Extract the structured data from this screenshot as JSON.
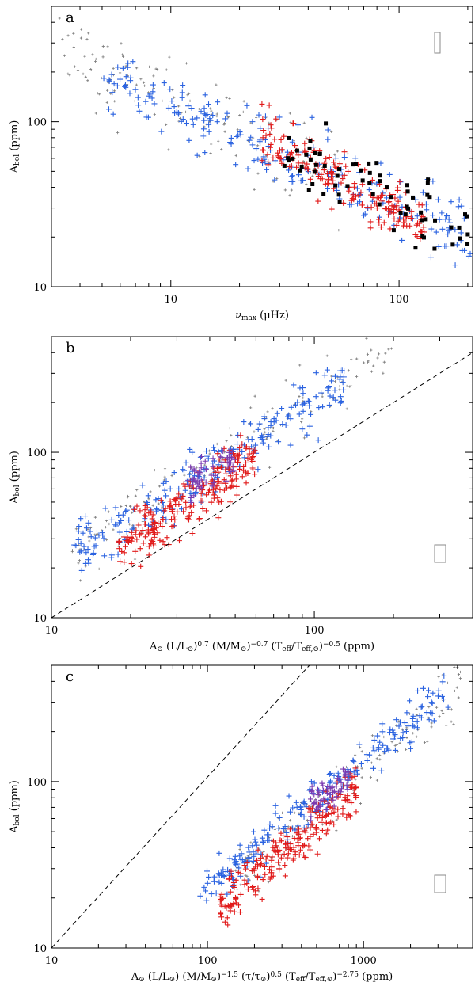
{
  "colors": {
    "grey": "#7a7a7a",
    "blue": "#2a62e0",
    "red": "#e11a1a",
    "black": "#000000",
    "purple": "#7a3ab0"
  },
  "chart_data": [
    {
      "type": "scatter",
      "panel_label": "a",
      "title": "",
      "xlabel_parts": {
        "symbol": "ν",
        "sub": "max",
        "rest": " (μHz)"
      },
      "ylabel_parts": {
        "main": "A",
        "sub": "bol",
        "rest": " (ppm)"
      },
      "x_scale": "log",
      "y_scale": "log",
      "xlim": [
        3,
        210
      ],
      "ylim": [
        10,
        500
      ],
      "x_ticks": [
        {
          "value": 10,
          "label": "10"
        },
        {
          "value": 100,
          "label": "100"
        }
      ],
      "y_ticks": [
        {
          "value": 10,
          "label": "10"
        },
        {
          "value": 100,
          "label": "100"
        }
      ],
      "error_box": "top-right",
      "series": [
        {
          "color": "grey",
          "marker": "small-plus",
          "trend": {
            "x0": 3.2,
            "x1": 60,
            "a": 520,
            "slope": -0.6,
            "scatter": 0.14
          },
          "count": 150
        },
        {
          "color": "blue",
          "marker": "plus",
          "trend": {
            "x0": 5,
            "x1": 205,
            "a": 500,
            "slope": -0.6,
            "scatter": 0.1
          },
          "count": 230
        },
        {
          "color": "red",
          "marker": "plus",
          "trend": {
            "x0": 25,
            "x1": 130,
            "a": 900,
            "slope": -0.75,
            "scatter": 0.08
          },
          "count": 200
        },
        {
          "color": "black",
          "marker": "square",
          "trend": {
            "x0": 30,
            "x1": 200,
            "a": 650,
            "slope": -0.65,
            "scatter": 0.1
          },
          "count": 70
        }
      ]
    },
    {
      "type": "scatter",
      "panel_label": "b",
      "title": "",
      "xlabel_parts": [
        {
          "t": "A"
        },
        {
          "t": "⊙",
          "sub": true
        },
        {
          "t": "  (L/L"
        },
        {
          "t": "⊙",
          "sub": true
        },
        {
          "t": ")"
        },
        {
          "t": "0.7",
          "sup": true
        },
        {
          "t": " (M/M"
        },
        {
          "t": "⊙",
          "sub": true
        },
        {
          "t": ")"
        },
        {
          "t": "−0.7",
          "sup": true
        },
        {
          "t": " (T"
        },
        {
          "t": "eff",
          "sub": true
        },
        {
          "t": "/T"
        },
        {
          "t": "eff,⊙",
          "sub": true
        },
        {
          "t": ")"
        },
        {
          "t": "−0.5",
          "sup": true
        },
        {
          "t": "   (ppm)"
        }
      ],
      "ylabel_parts": {
        "main": "A",
        "sub": "bol",
        "rest": "  (ppm)"
      },
      "x_scale": "log",
      "y_scale": "log",
      "xlim": [
        10,
        400
      ],
      "ylim": [
        10,
        500
      ],
      "x_ticks": [
        {
          "value": 10,
          "label": "10"
        },
        {
          "value": 100,
          "label": "100"
        }
      ],
      "y_ticks": [
        {
          "value": 10,
          "label": "10"
        },
        {
          "value": 100,
          "label": "100"
        }
      ],
      "reference_line": {
        "style": "dashed",
        "x": [
          10,
          400
        ],
        "y": [
          10,
          400
        ]
      },
      "error_box": "bottom-right",
      "series": [
        {
          "color": "grey",
          "marker": "small-plus",
          "trend": {
            "x0": 12,
            "x1": 200,
            "a": 2.2,
            "slope": 1.0,
            "scatter": 0.1
          },
          "count": 160
        },
        {
          "color": "blue",
          "marker": "plus",
          "trend": {
            "x0": 12,
            "x1": 130,
            "a": 2.0,
            "slope": 1.0,
            "scatter": 0.08
          },
          "count": 230
        },
        {
          "color": "red",
          "marker": "plus",
          "trend": {
            "x0": 18,
            "x1": 60,
            "a": 1.3,
            "slope": 1.05,
            "scatter": 0.09
          },
          "count": 230
        },
        {
          "color": "purple",
          "marker": "plus",
          "trend": {
            "x0": 33,
            "x1": 50,
            "a": 1.9,
            "slope": 1.0,
            "scatter": 0.06
          },
          "count": 60
        }
      ]
    },
    {
      "type": "scatter",
      "panel_label": "c",
      "title": "",
      "xlabel_parts": [
        {
          "t": "A"
        },
        {
          "t": "⊙",
          "sub": true
        },
        {
          "t": "  (L/L"
        },
        {
          "t": "⊙",
          "sub": true
        },
        {
          "t": ")"
        },
        {
          "t": " (M/M"
        },
        {
          "t": "⊙",
          "sub": true
        },
        {
          "t": ")"
        },
        {
          "t": "−1.5",
          "sup": true
        },
        {
          "t": " (τ/τ"
        },
        {
          "t": "⊙",
          "sub": true
        },
        {
          "t": ")"
        },
        {
          "t": "0.5",
          "sup": true
        },
        {
          "t": " (T"
        },
        {
          "t": "eff",
          "sub": true
        },
        {
          "t": "/T"
        },
        {
          "t": "eff,⊙",
          "sub": true
        },
        {
          "t": ")"
        },
        {
          "t": "−2.75",
          "sup": true
        },
        {
          "t": " (ppm)"
        }
      ],
      "ylabel_parts": {
        "main": "A",
        "sub": "bol",
        "rest": " (ppm)"
      },
      "x_scale": "log",
      "y_scale": "log",
      "xlim": [
        10,
        5000
      ],
      "ylim": [
        10,
        500
      ],
      "x_ticks": [
        {
          "value": 10,
          "label": "10"
        },
        {
          "value": 100,
          "label": "100"
        },
        {
          "value": 1000,
          "label": "1000"
        }
      ],
      "y_ticks": [
        {
          "value": 10,
          "label": "10"
        },
        {
          "value": 100,
          "label": "100"
        }
      ],
      "reference_line": {
        "style": "dashed",
        "x": [
          10,
          450
        ],
        "y": [
          10,
          500
        ]
      },
      "error_box": "bottom-right",
      "series": [
        {
          "color": "grey",
          "marker": "small-plus",
          "trend": {
            "x0": 150,
            "x1": 4300,
            "a": 0.55,
            "slope": 0.78,
            "scatter": 0.09
          },
          "count": 160
        },
        {
          "color": "blue",
          "marker": "plus",
          "trend": {
            "x0": 85,
            "x1": 3500,
            "a": 0.62,
            "slope": 0.78,
            "scatter": 0.07
          },
          "count": 230
        },
        {
          "color": "red",
          "marker": "plus",
          "trend": {
            "x0": 120,
            "x1": 900,
            "a": 0.35,
            "slope": 0.82,
            "scatter": 0.07
          },
          "count": 230
        },
        {
          "color": "purple",
          "marker": "plus",
          "trend": {
            "x0": 450,
            "x1": 800,
            "a": 0.6,
            "slope": 0.78,
            "scatter": 0.05
          },
          "count": 60
        }
      ]
    }
  ]
}
